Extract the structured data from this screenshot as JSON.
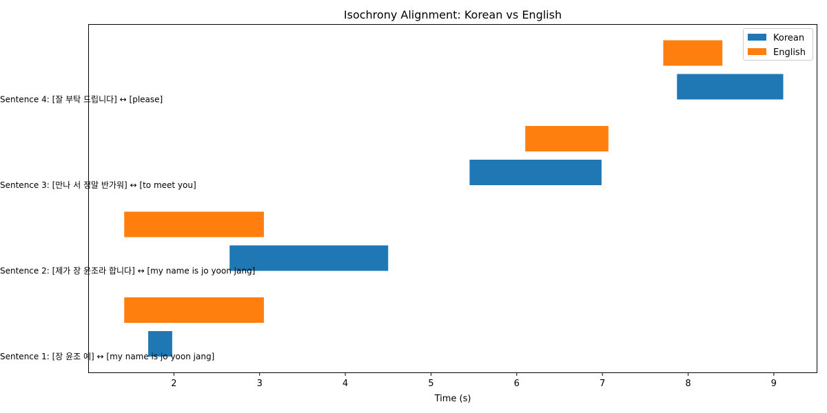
{
  "chart_data": {
    "type": "bar",
    "orientation": "horizontal-timeline",
    "title": "Isochrony Alignment: Korean vs English",
    "xlabel": "Time (s)",
    "ylabel": "",
    "xlim": [
      1.0,
      9.5
    ],
    "xticks": [
      "2",
      "3",
      "4",
      "5",
      "6",
      "7",
      "8",
      "9"
    ],
    "xtick_values": [
      2,
      3,
      4,
      5,
      6,
      7,
      8,
      9
    ],
    "grid": false,
    "legend_position": "top-right",
    "legend": [
      "Korean",
      "English"
    ],
    "colors": {
      "Korean": "#1f77b4",
      "English": "#ff7f0e"
    },
    "sentences": [
      {
        "label": "Sentence 1: [장 윤조 예] ↔ [my name is jo yoon jang]",
        "korean": {
          "start": 1.7,
          "end": 1.98
        },
        "english": {
          "start": 1.42,
          "end": 3.05
        }
      },
      {
        "label": "Sentence 2: [제가 장 윤조라 합니다] ↔ [my name is jo yoon jang]",
        "korean": {
          "start": 2.65,
          "end": 4.5
        },
        "english": {
          "start": 1.42,
          "end": 3.05
        }
      },
      {
        "label": "Sentence 3: [만나 서 정말 반가워] ↔ [to meet you]",
        "korean": {
          "start": 5.45,
          "end": 6.99
        },
        "english": {
          "start": 6.1,
          "end": 7.07
        }
      },
      {
        "label": "Sentence 4: [잘 부탁 드립니다] ↔ [please]",
        "korean": {
          "start": 7.87,
          "end": 9.11
        },
        "english": {
          "start": 7.71,
          "end": 8.4
        }
      }
    ]
  }
}
